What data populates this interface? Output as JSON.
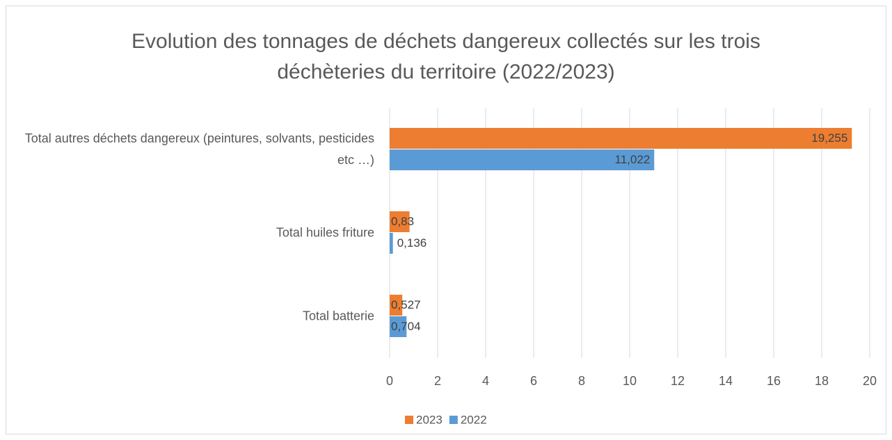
{
  "chart_data": {
    "type": "bar",
    "orientation": "horizontal",
    "title": "Evolution des tonnages de déchets dangereux collectés sur les trois déchèteries du territoire (2022/2023)",
    "categories": [
      "Total autres déchets dangereux (peintures, solvants, pesticides etc …)",
      "Total huiles friture",
      "Total batterie"
    ],
    "series": [
      {
        "name": "2023",
        "color": "#ED7D31",
        "values": [
          19.255,
          0.83,
          0.527
        ],
        "value_labels": [
          "19,255",
          "0,83",
          "0,527"
        ]
      },
      {
        "name": "2022",
        "color": "#5B9BD5",
        "values": [
          11.022,
          0.136,
          0.704
        ],
        "value_labels": [
          "11,022",
          "0,136",
          "0,704"
        ]
      }
    ],
    "xlim": [
      0,
      20
    ],
    "xticks": [
      0,
      2,
      4,
      6,
      8,
      10,
      12,
      14,
      16,
      18,
      20
    ],
    "grid": true,
    "legend": "bottom"
  }
}
